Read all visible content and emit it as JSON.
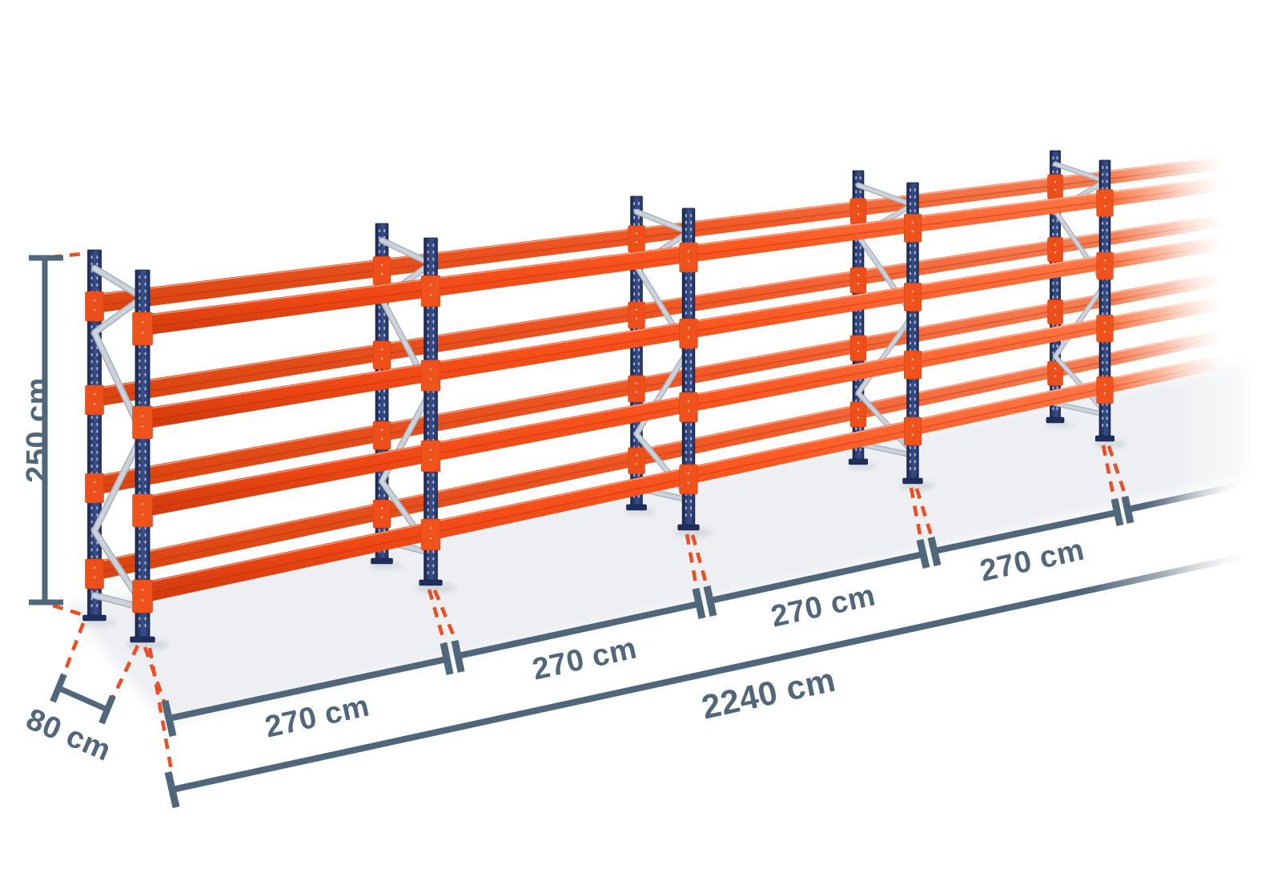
{
  "diagram": {
    "type": "pallet-racking-dimension-illustration",
    "labels": {
      "height": "250 cm",
      "depth": "80 cm",
      "bays": [
        "270 cm",
        "270 cm",
        "270 cm",
        "270 cm"
      ],
      "total_length": "2240 cm"
    },
    "structure": {
      "upright_frames_visible": 5,
      "beam_levels": 4,
      "rows_fade_out_right": true
    },
    "colors": {
      "beam_orange": "#fb5620",
      "connector_orange": "#f0521c",
      "upright_navy": "#2c3f74",
      "brace_silver": "#c6cbd4",
      "dimension_slate": "#50667a",
      "leader_dash_orange": "#ee4d22",
      "floor_gray": "#e9ecf0",
      "background": "#ffffff"
    }
  }
}
